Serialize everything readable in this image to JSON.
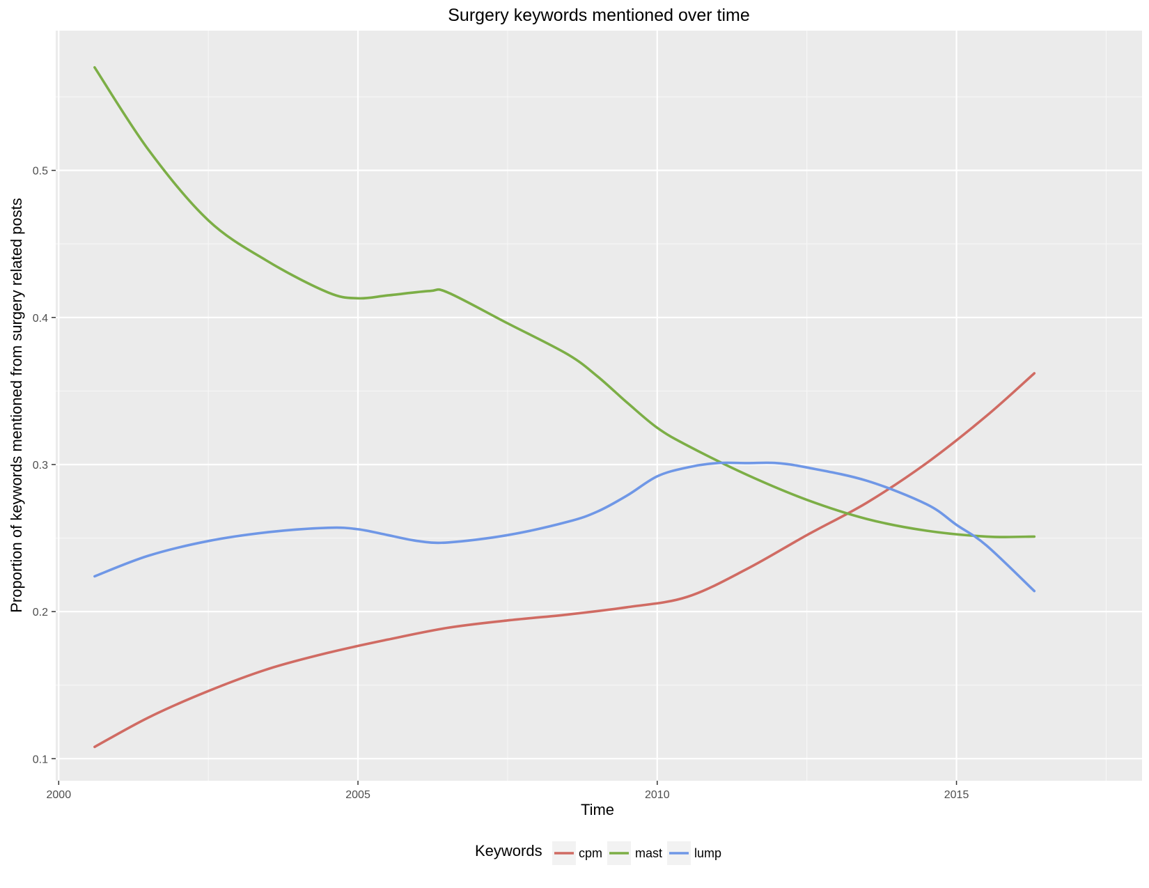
{
  "chart_data": {
    "type": "line",
    "title": "Surgery keywords mentioned over time",
    "xlabel": "Time",
    "ylabel": "Proportion of keywords mentioned from surgery related posts",
    "xlim": [
      1999.95,
      2018.1
    ],
    "ylim": [
      0.085,
      0.595
    ],
    "x_ticks": [
      2000,
      2005,
      2010,
      2015
    ],
    "x_tick_labels": [
      "2000",
      "2005",
      "2010",
      "2015"
    ],
    "y_ticks": [
      0.1,
      0.2,
      0.3,
      0.4,
      0.5
    ],
    "y_tick_labels": [
      "0.1",
      "0.2",
      "0.3",
      "0.4",
      "0.5"
    ],
    "grid": true,
    "legend": {
      "title": "Keywords",
      "position": "bottom"
    },
    "series": [
      {
        "name": "cpm",
        "color": "#d06b63",
        "x": [
          2000.6,
          2001.5,
          2002.5,
          2003.5,
          2004.5,
          2005.5,
          2006.5,
          2007.5,
          2008.5,
          2009.5,
          2010.5,
          2011.5,
          2012.5,
          2013.5,
          2014.5,
          2015.5,
          2016.3
        ],
        "y": [
          0.108,
          0.128,
          0.146,
          0.161,
          0.172,
          0.181,
          0.189,
          0.194,
          0.198,
          0.203,
          0.21,
          0.229,
          0.252,
          0.274,
          0.301,
          0.333,
          0.362
        ]
      },
      {
        "name": "mast",
        "color": "#7cae46",
        "x": [
          2000.6,
          2001.5,
          2002.5,
          2003.5,
          2004.5,
          2005.0,
          2005.5,
          2006.2,
          2006.5,
          2007.5,
          2008.5,
          2009.0,
          2009.5,
          2010.0,
          2010.5,
          2011.5,
          2012.5,
          2013.5,
          2014.5,
          2015.5,
          2016.3
        ],
        "y": [
          0.57,
          0.514,
          0.466,
          0.438,
          0.417,
          0.413,
          0.415,
          0.418,
          0.417,
          0.396,
          0.375,
          0.36,
          0.342,
          0.325,
          0.313,
          0.293,
          0.276,
          0.263,
          0.255,
          0.251,
          0.251
        ]
      },
      {
        "name": "lump",
        "color": "#6f97e6",
        "x": [
          2000.6,
          2001.5,
          2002.5,
          2003.5,
          2004.5,
          2005.0,
          2005.5,
          2006.0,
          2006.5,
          2007.5,
          2008.5,
          2009.0,
          2009.5,
          2010.0,
          2010.5,
          2011.0,
          2011.5,
          2012.0,
          2012.5,
          2013.5,
          2014.5,
          2015.0,
          2015.5,
          2016.3
        ],
        "y": [
          0.224,
          0.238,
          0.248,
          0.254,
          0.257,
          0.256,
          0.252,
          0.248,
          0.247,
          0.252,
          0.261,
          0.268,
          0.279,
          0.292,
          0.298,
          0.301,
          0.301,
          0.301,
          0.298,
          0.289,
          0.273,
          0.259,
          0.245,
          0.214
        ]
      }
    ]
  }
}
